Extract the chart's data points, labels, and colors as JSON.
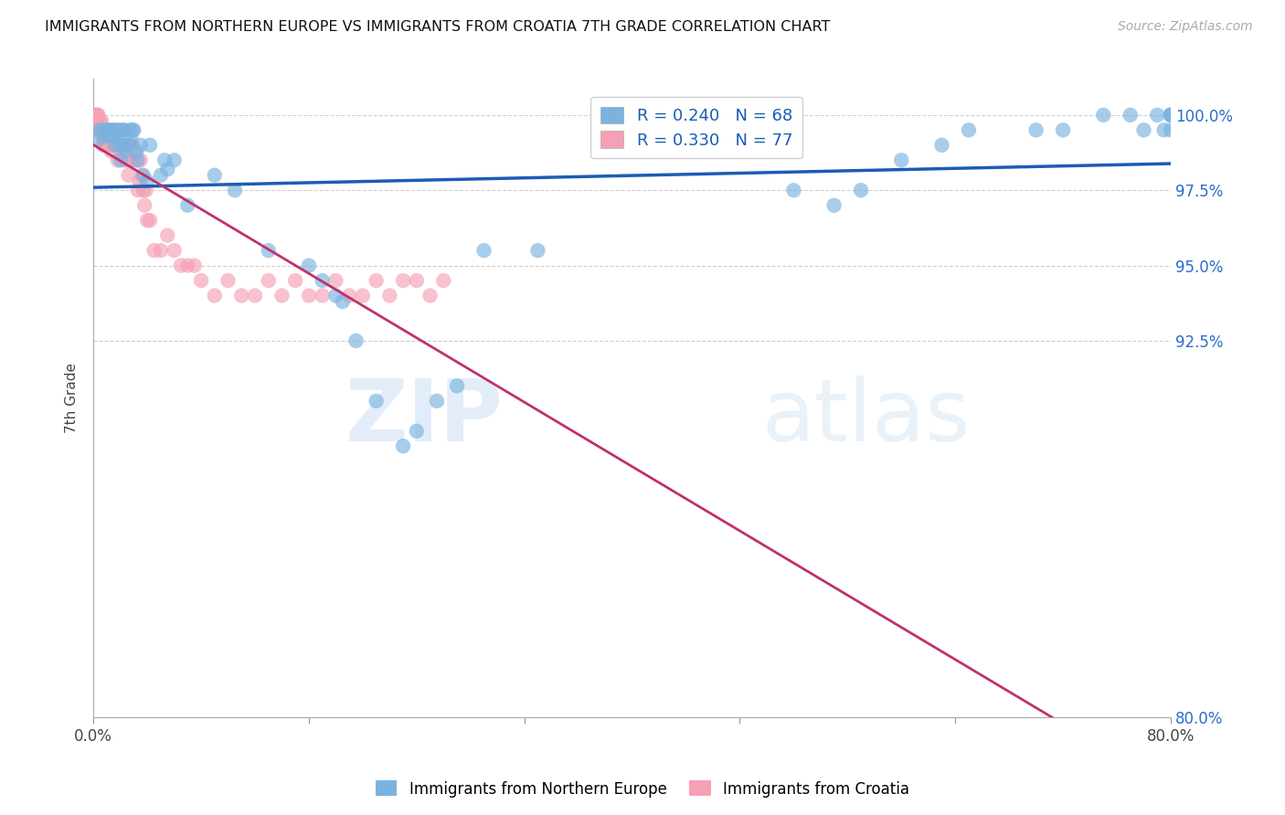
{
  "title": "IMMIGRANTS FROM NORTHERN EUROPE VS IMMIGRANTS FROM CROATIA 7TH GRADE CORRELATION CHART",
  "source": "Source: ZipAtlas.com",
  "ylabel": "7th Grade",
  "y_ticks": [
    80.0,
    92.5,
    95.0,
    97.5,
    100.0
  ],
  "y_tick_labels": [
    "80.0%",
    "92.5%",
    "95.0%",
    "97.5%",
    "100.0%"
  ],
  "legend_blue_r": "R = 0.240",
  "legend_blue_n": "N = 68",
  "legend_pink_r": "R = 0.330",
  "legend_pink_n": "N = 77",
  "blue_label": "Immigrants from Northern Europe",
  "pink_label": "Immigrants from Croatia",
  "blue_color": "#7ab3e0",
  "pink_color": "#f5a0b5",
  "blue_line_color": "#1a5cb5",
  "pink_line_color": "#c03070",
  "watermark_zip": "ZIP",
  "watermark_atlas": "atlas",
  "blue_scatter_x": [
    0.4,
    0.5,
    0.6,
    0.8,
    1.0,
    1.1,
    1.2,
    1.3,
    1.4,
    1.5,
    1.6,
    1.7,
    1.8,
    1.9,
    2.0,
    2.1,
    2.2,
    2.3,
    2.4,
    2.6,
    2.7,
    2.8,
    2.9,
    3.0,
    3.2,
    3.3,
    3.5,
    3.7,
    4.0,
    4.2,
    5.0,
    5.3,
    5.5,
    6.0,
    7.0,
    9.0,
    10.5,
    13.0,
    16.0,
    17.0,
    18.0,
    18.5,
    19.5,
    21.0,
    23.0,
    24.0,
    25.5,
    27.0,
    29.0,
    33.0,
    52.0,
    55.0,
    57.0,
    60.0,
    63.0,
    65.0,
    70.0,
    72.0,
    75.0,
    77.0,
    78.0,
    79.0,
    79.5,
    80.0,
    80.0,
    80.0,
    80.0,
    80.0
  ],
  "blue_scatter_y": [
    99.2,
    99.5,
    99.5,
    99.3,
    99.5,
    99.5,
    99.3,
    99.5,
    99.3,
    99.5,
    99.0,
    99.3,
    99.5,
    99.0,
    98.5,
    99.5,
    99.0,
    99.5,
    98.8,
    99.0,
    99.5,
    99.2,
    99.5,
    99.5,
    98.8,
    98.5,
    99.0,
    98.0,
    97.8,
    99.0,
    98.0,
    98.5,
    98.2,
    98.5,
    97.0,
    98.0,
    97.5,
    95.5,
    95.0,
    94.5,
    94.0,
    93.8,
    92.5,
    90.5,
    89.0,
    89.5,
    90.5,
    91.0,
    95.5,
    95.5,
    97.5,
    97.0,
    97.5,
    98.5,
    99.0,
    99.5,
    99.5,
    99.5,
    100.0,
    100.0,
    99.5,
    100.0,
    99.5,
    100.0,
    100.0,
    99.5,
    100.0,
    100.0
  ],
  "pink_scatter_x": [
    0.05,
    0.1,
    0.15,
    0.2,
    0.25,
    0.3,
    0.35,
    0.4,
    0.45,
    0.5,
    0.55,
    0.6,
    0.65,
    0.7,
    0.75,
    0.8,
    0.85,
    0.9,
    0.95,
    1.0,
    1.1,
    1.2,
    1.3,
    1.4,
    1.5,
    1.6,
    1.7,
    1.8,
    1.9,
    2.0,
    2.1,
    2.2,
    2.3,
    2.4,
    2.5,
    2.6,
    2.7,
    2.8,
    2.9,
    3.0,
    3.1,
    3.2,
    3.3,
    3.4,
    3.5,
    3.6,
    3.7,
    3.8,
    3.9,
    4.0,
    4.2,
    4.5,
    5.0,
    5.5,
    6.0,
    6.5,
    7.0,
    7.5,
    8.0,
    9.0,
    10.0,
    11.0,
    12.0,
    13.0,
    14.0,
    15.0,
    16.0,
    17.0,
    18.0,
    19.0,
    20.0,
    21.0,
    22.0,
    23.0,
    24.0,
    25.0,
    26.0
  ],
  "pink_scatter_y": [
    100.0,
    100.0,
    100.0,
    100.0,
    99.8,
    100.0,
    100.0,
    99.5,
    99.5,
    99.8,
    99.5,
    99.8,
    99.3,
    99.0,
    99.5,
    99.0,
    99.3,
    99.5,
    99.2,
    99.0,
    99.5,
    99.0,
    98.8,
    99.5,
    99.0,
    99.0,
    99.5,
    98.5,
    99.0,
    98.8,
    99.0,
    99.5,
    98.5,
    99.0,
    98.5,
    98.0,
    99.0,
    98.5,
    99.0,
    98.5,
    98.8,
    98.5,
    97.5,
    97.8,
    98.5,
    98.0,
    97.5,
    97.0,
    97.5,
    96.5,
    96.5,
    95.5,
    95.5,
    96.0,
    95.5,
    95.0,
    95.0,
    95.0,
    94.5,
    94.0,
    94.5,
    94.0,
    94.0,
    94.5,
    94.0,
    94.5,
    94.0,
    94.0,
    94.5,
    94.0,
    94.0,
    94.5,
    94.0,
    94.5,
    94.5,
    94.0,
    94.5
  ]
}
